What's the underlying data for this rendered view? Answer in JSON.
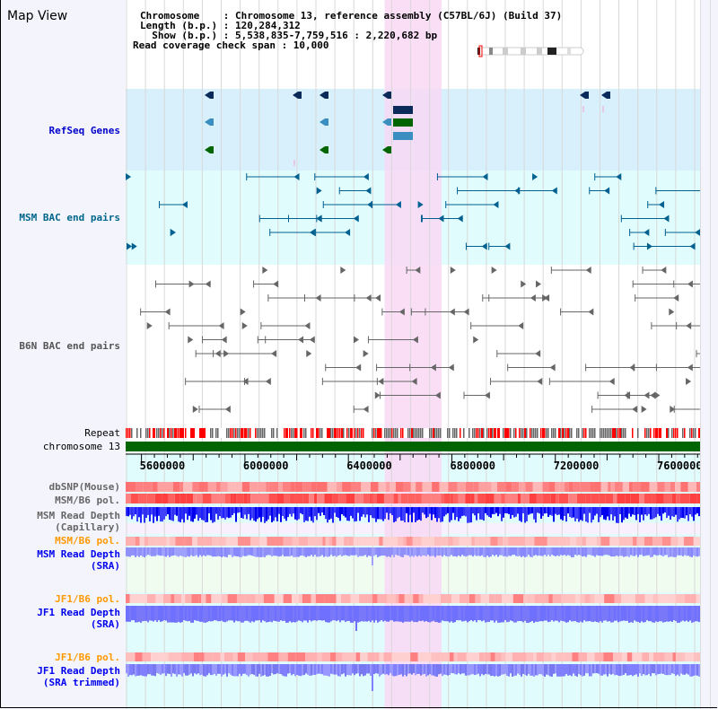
{
  "title": "Map View",
  "header": {
    "chromosome_label": "Chromosome    : Chromosome 13, reference assembly (C57BL/6J) (Build 37)",
    "length_label": "Length (b.p.) : 120,284,312",
    "show_label": "  Show (b.p.) : 5,538,835-7,759,516 : 2,220,682 bp",
    "coverage_label": "Read coverage check span : 10,000"
  },
  "tracks": {
    "refseq": "RefSeq Genes",
    "msm_bac": "MSM BAC end pairs",
    "b6n_bac": "B6N BAC end pairs",
    "repeat": "Repeat",
    "chromosome": "chromosome 13",
    "dbsnp": "dbSNP(Mouse)",
    "msm_b6_pol": "MSM/B6 pol.",
    "msm_depth_cap": "MSM Read Depth\n(Capillary)",
    "msm_b6_pol2": "MSM/B6 pol.",
    "msm_depth_sra": "MSM Read Depth\n(SRA)",
    "jf1_b6_pol": "JF1/B6 pol.",
    "jf1_depth_sra": "JF1 Read Depth\n(SRA)",
    "jf1_b6_pol2": "JF1/B6 pol.",
    "jf1_depth_trim": "JF1 Read Depth\n(SRA trimmed)"
  },
  "axis": {
    "start": 5538835,
    "end": 7759516,
    "ticks": [
      "5600000",
      "6000000",
      "6400000",
      "6800000",
      "7200000",
      "7600000"
    ],
    "tick_values": [
      5600000,
      6000000,
      6400000,
      6800000,
      7200000,
      7600000
    ]
  },
  "highlight": {
    "start": 6540000,
    "end": 6760000
  },
  "colors": {
    "gene_dark": "#0a2a5a",
    "gene_mid": "#3a8fc0",
    "gene_green": "#006400",
    "bac": "#006090",
    "b6n": "#666666",
    "highlight": "#f8d8f4",
    "chromosome": "#006400",
    "orange_label": "#ff9900",
    "blue_label": "#0000ee"
  }
}
